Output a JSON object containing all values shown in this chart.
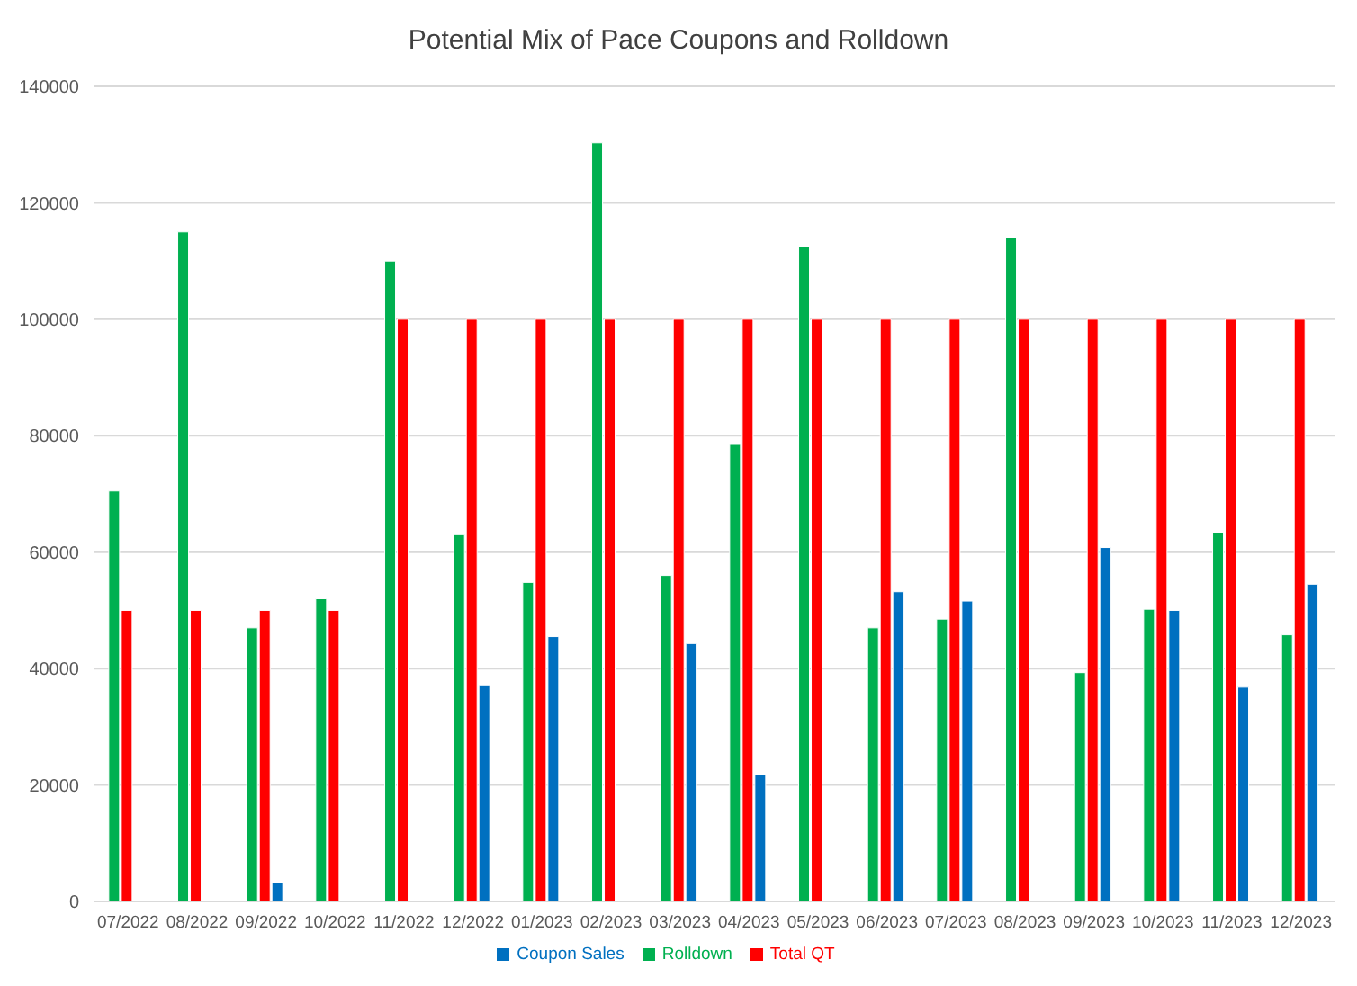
{
  "chart_data": {
    "type": "bar",
    "title": "Potential Mix of Pace Coupons and Rolldown",
    "categories": [
      "07/2022",
      "08/2022",
      "09/2022",
      "10/2022",
      "11/2022",
      "12/2022",
      "01/2023",
      "02/2023",
      "03/2023",
      "04/2023",
      "05/2023",
      "06/2023",
      "07/2023",
      "08/2023",
      "09/2023",
      "10/2023",
      "11/2023",
      "12/2023"
    ],
    "series": [
      {
        "name": "Rolldown",
        "color": "#00b050",
        "values": [
          70500,
          115000,
          47000,
          52000,
          110000,
          63000,
          54800,
          130300,
          56000,
          78500,
          112500,
          47000,
          48500,
          114000,
          39300,
          50200,
          63300,
          45800
        ]
      },
      {
        "name": "Total QT",
        "color": "#ff0000",
        "values": [
          50000,
          50000,
          50000,
          50000,
          100000,
          100000,
          100000,
          100000,
          100000,
          100000,
          100000,
          100000,
          100000,
          100000,
          100000,
          100000,
          100000,
          100000
        ]
      },
      {
        "name": "Coupon Sales",
        "color": "#0070c0",
        "values": [
          null,
          null,
          3200,
          null,
          null,
          37200,
          45500,
          null,
          44300,
          21800,
          null,
          53200,
          51600,
          null,
          60800,
          50000,
          36800,
          54500
        ]
      }
    ],
    "ylim": [
      0,
      140000
    ],
    "yticks": [
      0,
      20000,
      40000,
      60000,
      80000,
      100000,
      120000,
      140000
    ],
    "grid": "y",
    "legend": "bottom"
  }
}
